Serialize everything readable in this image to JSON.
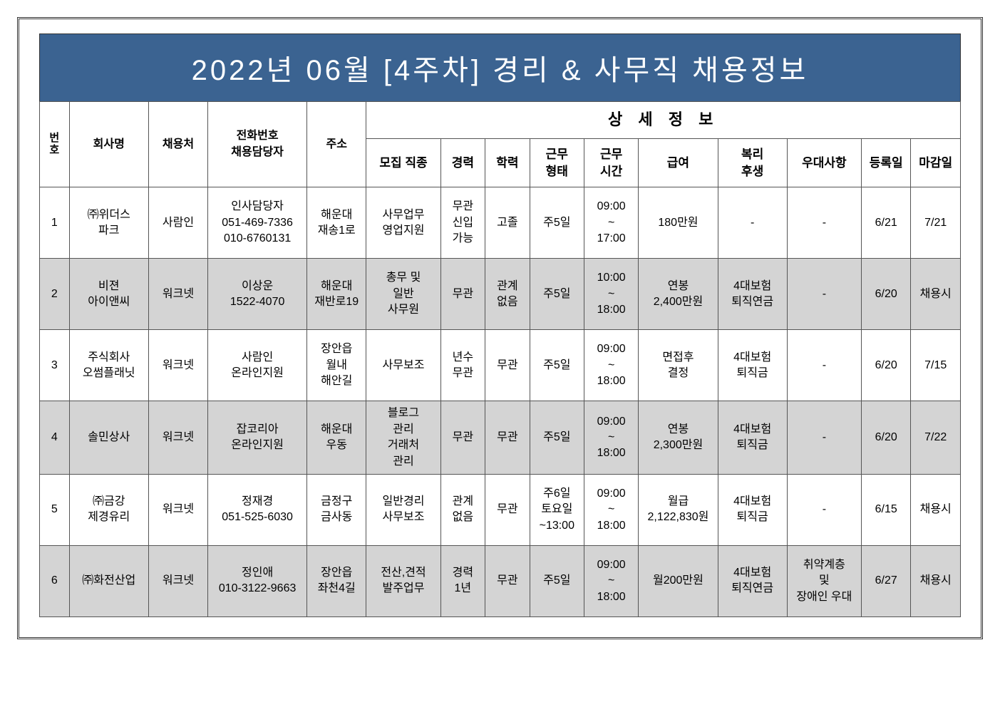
{
  "title": "2022년 06월 [4주차] 경리 & 사무직 채용정보",
  "colors": {
    "header_bg": "#3b6391",
    "header_text": "#ffffff",
    "alt_row": "#d4d4d4",
    "border": "#555555"
  },
  "headers": {
    "no": "번\n호",
    "company": "회사명",
    "source": "채용처",
    "contact": "전화번호\n채용담당자",
    "address": "주소",
    "detail": "상 세 정 보",
    "position": "모집 직종",
    "experience": "경력",
    "education": "학력",
    "work_type": "근무\n형태",
    "hours": "근무\n시간",
    "salary": "급여",
    "benefits": "복리\n후생",
    "preference": "우대사항",
    "reg_date": "등록일",
    "deadline": "마감일"
  },
  "rows": [
    {
      "no": "1",
      "company": "㈜위더스\n파크",
      "source": "사람인",
      "contact": "인사담당자\n051-469-7336\n010-6760131",
      "address": "해운대\n재송1로",
      "position": "사무업무\n영업지원",
      "experience": "무관\n신입\n가능",
      "education": "고졸",
      "work_type": "주5일",
      "hours": "09:00\n~\n17:00",
      "salary": "180만원",
      "benefits": "-",
      "preference": "-",
      "reg_date": "6/21",
      "deadline": "7/21"
    },
    {
      "no": "2",
      "company": "비젼\n아이앤씨",
      "source": "워크넷",
      "contact": "이상운\n1522-4070",
      "address": "해운대\n재반로19",
      "position": "총무 및\n일반\n사무원",
      "experience": "무관",
      "education": "관계\n없음",
      "work_type": "주5일",
      "hours": "10:00\n~\n18:00",
      "salary": "연봉\n2,400만원",
      "benefits": "4대보험\n퇴직연금",
      "preference": "-",
      "reg_date": "6/20",
      "deadline": "채용시"
    },
    {
      "no": "3",
      "company": "주식회사\n오썸플래닛",
      "source": "워크넷",
      "contact": "사람인\n온라인지원",
      "address": "장안읍\n월내\n해안길",
      "position": "사무보조",
      "experience": "년수\n무관",
      "education": "무관",
      "work_type": "주5일",
      "hours": "09:00\n~\n18:00",
      "salary": "면접후\n결정",
      "benefits": "4대보험\n퇴직금",
      "preference": "-",
      "reg_date": "6/20",
      "deadline": "7/15"
    },
    {
      "no": "4",
      "company": "솔민상사",
      "source": "워크넷",
      "contact": "잡코리아\n온라인지원",
      "address": "해운대\n우동",
      "position": "블로그\n관리\n거래처\n관리",
      "experience": "무관",
      "education": "무관",
      "work_type": "주5일",
      "hours": "09:00\n~\n18:00",
      "salary": "연봉\n2,300만원",
      "benefits": "4대보험\n퇴직금",
      "preference": "-",
      "reg_date": "6/20",
      "deadline": "7/22"
    },
    {
      "no": "5",
      "company": "㈜금강\n제경유리",
      "source": "워크넷",
      "contact": "정재경\n051-525-6030",
      "address": "금정구\n금사동",
      "position": "일반경리\n사무보조",
      "experience": "관계\n없음",
      "education": "무관",
      "work_type": "주6일\n토요일\n~13:00",
      "hours": "09:00\n~\n18:00",
      "salary": "월급\n2,122,830원",
      "benefits": "4대보험\n퇴직금",
      "preference": "-",
      "reg_date": "6/15",
      "deadline": "채용시"
    },
    {
      "no": "6",
      "company": "㈜화전산업",
      "source": "워크넷",
      "contact": "정인애\n010-3122-9663",
      "address": "장안읍\n좌천4길",
      "position": "전산,견적\n발주업무",
      "experience": "경력\n1년",
      "education": "무관",
      "work_type": "주5일",
      "hours": "09:00\n~\n18:00",
      "salary": "월200만원",
      "benefits": "4대보험\n퇴직연금",
      "preference": "취약계층\n및\n장애인 우대",
      "reg_date": "6/27",
      "deadline": "채용시"
    }
  ]
}
